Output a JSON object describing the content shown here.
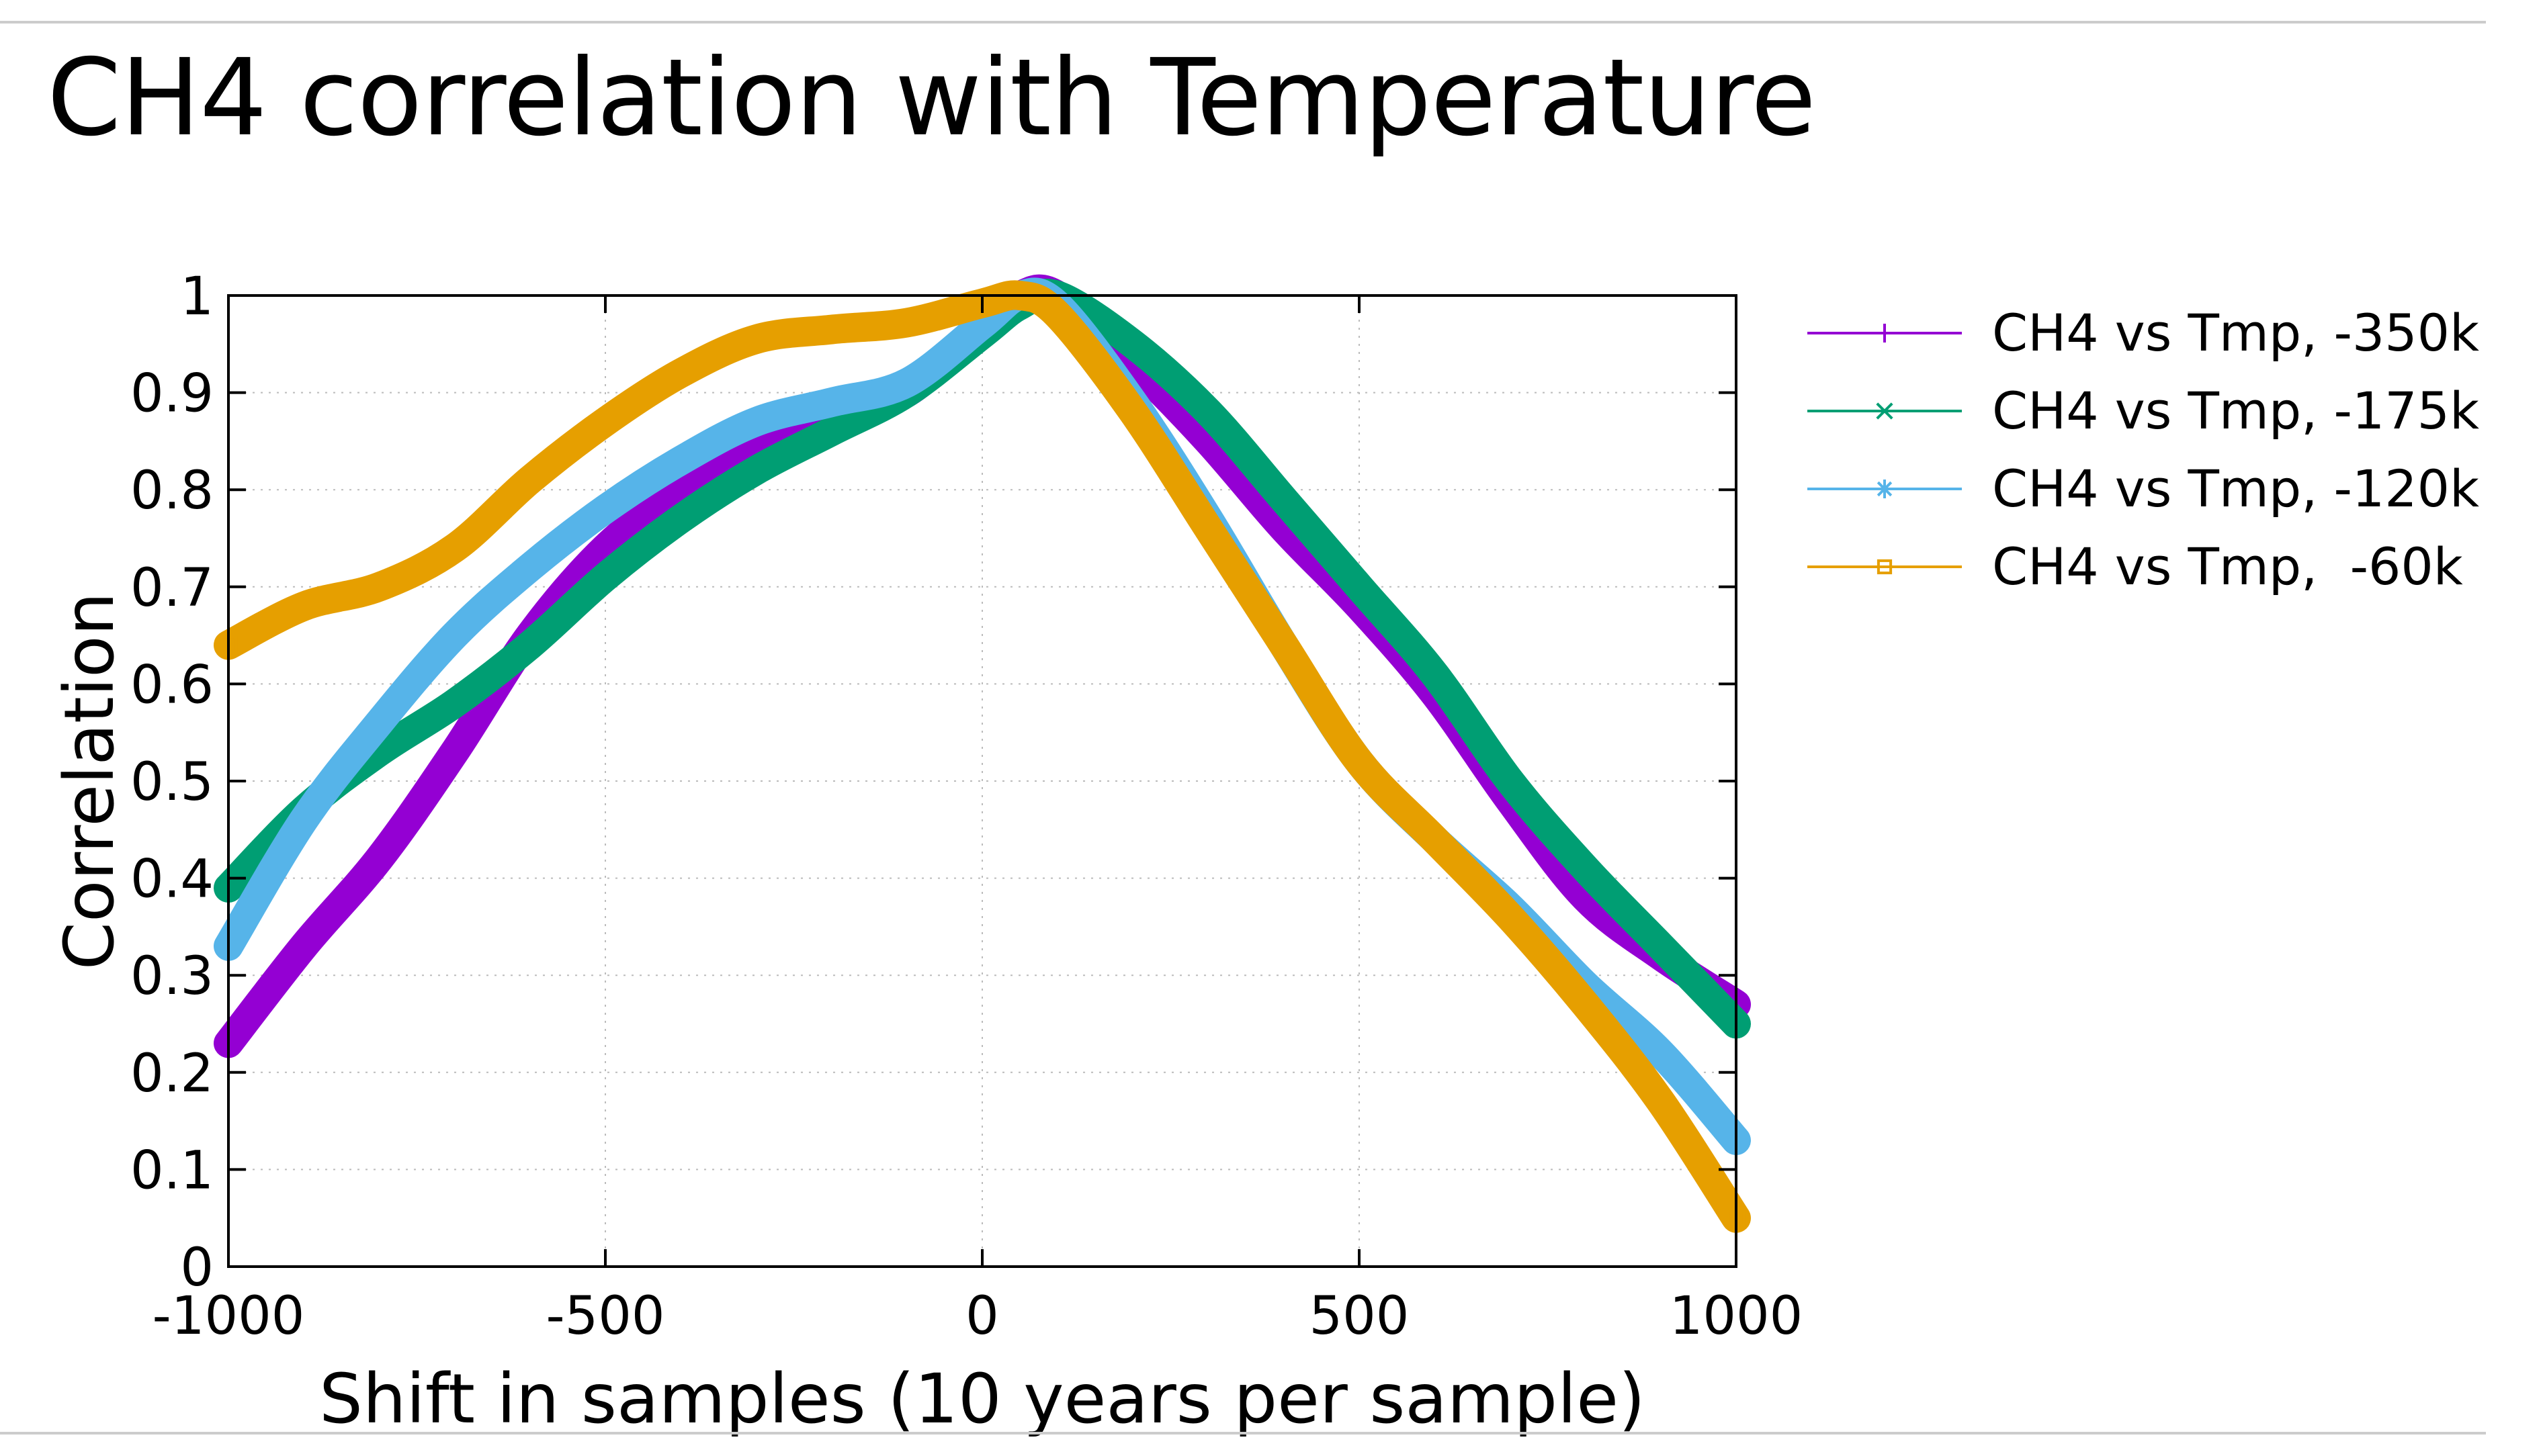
{
  "slide": {
    "title": "CH4 correlation with Temperature"
  },
  "chart_data": {
    "type": "line",
    "title": "CH4 correlation with Temperature",
    "xlabel": "Shift in samples (10 years per sample)",
    "ylabel": "Correlation",
    "xlim": [
      -1000,
      1000
    ],
    "ylim": [
      0,
      1
    ],
    "xticks": [
      -1000,
      -500,
      0,
      500,
      1000
    ],
    "xtick_labels": [
      "-1000",
      "-500",
      "0",
      "500",
      "1000"
    ],
    "yticks": [
      0,
      0.1,
      0.2,
      0.3,
      0.4,
      0.5,
      0.6,
      0.7,
      0.8,
      0.9,
      1
    ],
    "ytick_labels": [
      "0",
      "0.1",
      "0.2",
      "0.3",
      "0.4",
      "0.5",
      "0.6",
      "0.7",
      "0.8",
      "0.9",
      "1"
    ],
    "grid": true,
    "legend_position": "outside-right-top",
    "series": [
      {
        "name": "CH4 vs Tmp, -350k",
        "color": "#9400d3",
        "marker": "plus",
        "x": [
          -1000,
          -900,
          -800,
          -700,
          -600,
          -500,
          -400,
          -300,
          -200,
          -100,
          0,
          50,
          100,
          200,
          300,
          400,
          500,
          600,
          700,
          800,
          900,
          1000
        ],
        "y": [
          0.23,
          0.33,
          0.42,
          0.53,
          0.65,
          0.74,
          0.8,
          0.85,
          0.88,
          0.9,
          0.97,
          1.0,
          1.0,
          0.93,
          0.85,
          0.76,
          0.68,
          0.59,
          0.48,
          0.38,
          0.32,
          0.27
        ]
      },
      {
        "name": "CH4 vs Tmp, -175k",
        "color": "#009e73",
        "marker": "x",
        "x": [
          -1000,
          -900,
          -800,
          -700,
          -600,
          -500,
          -400,
          -300,
          -200,
          -100,
          0,
          50,
          100,
          200,
          300,
          400,
          500,
          600,
          700,
          800,
          900,
          1000
        ],
        "y": [
          0.39,
          0.47,
          0.53,
          0.58,
          0.64,
          0.71,
          0.77,
          0.82,
          0.86,
          0.9,
          0.96,
          0.99,
          1.0,
          0.95,
          0.88,
          0.79,
          0.7,
          0.61,
          0.5,
          0.41,
          0.33,
          0.25
        ]
      },
      {
        "name": "CH4 vs Tmp, -120k",
        "color": "#56b4e9",
        "marker": "star",
        "x": [
          -1000,
          -900,
          -800,
          -700,
          -600,
          -500,
          -400,
          -300,
          -200,
          -100,
          0,
          50,
          100,
          200,
          300,
          400,
          500,
          600,
          700,
          800,
          900,
          1000
        ],
        "y": [
          0.33,
          0.46,
          0.56,
          0.65,
          0.72,
          0.78,
          0.83,
          0.87,
          0.89,
          0.91,
          0.97,
          1.0,
          0.99,
          0.89,
          0.77,
          0.64,
          0.52,
          0.44,
          0.37,
          0.29,
          0.22,
          0.13
        ]
      },
      {
        "name": "CH4 vs Tmp,  -60k",
        "color": "#e69f00",
        "marker": "square",
        "x": [
          -1000,
          -900,
          -800,
          -700,
          -600,
          -500,
          -400,
          -300,
          -200,
          -100,
          0,
          50,
          100,
          200,
          300,
          400,
          500,
          600,
          700,
          800,
          900,
          1000
        ],
        "y": [
          0.64,
          0.68,
          0.7,
          0.74,
          0.81,
          0.87,
          0.92,
          0.955,
          0.965,
          0.972,
          0.992,
          1.0,
          0.98,
          0.88,
          0.76,
          0.64,
          0.52,
          0.44,
          0.36,
          0.27,
          0.17,
          0.05
        ]
      }
    ]
  }
}
